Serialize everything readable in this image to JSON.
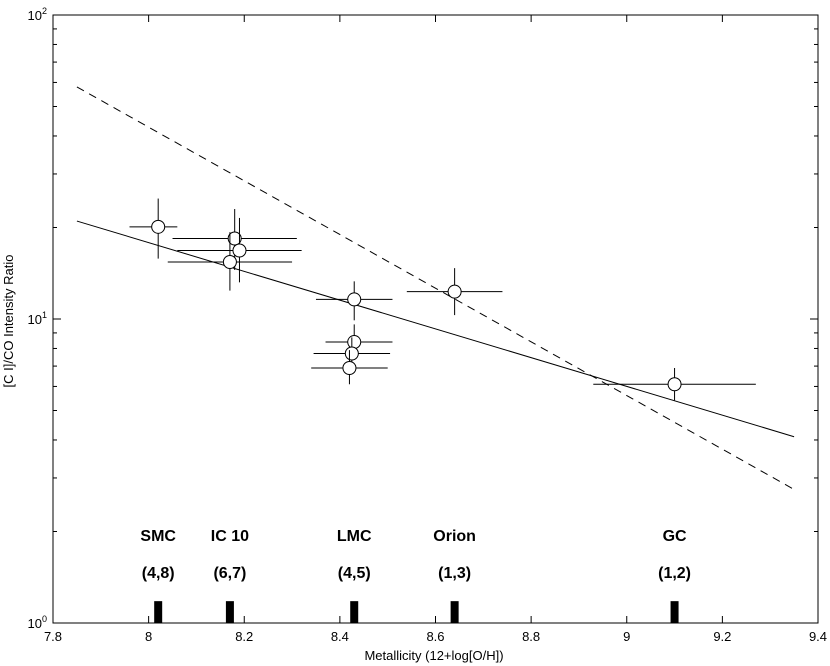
{
  "chart_data": {
    "type": "scatter",
    "xlabel": "Metallicity (12+log[O/H])",
    "ylabel": "[C I]/CO Intensity Ratio",
    "xlim": [
      7.8,
      9.4
    ],
    "ylim": [
      1,
      100
    ],
    "yscale": "log",
    "grid": false,
    "x_ticks": [
      7.8,
      8,
      8.2,
      8.4,
      8.6,
      8.8,
      9,
      9.2,
      9.4
    ],
    "x_tick_labels": [
      "7.8",
      "8",
      "8.2",
      "8.4",
      "8.6",
      "8.8",
      "9",
      "9.2",
      "9.4"
    ],
    "y_major_ticks": [
      {
        "value": 1,
        "base": "10",
        "exp": "0"
      },
      {
        "value": 10,
        "base": "10",
        "exp": "1"
      },
      {
        "value": 100,
        "base": "10",
        "exp": "2"
      }
    ],
    "y_minor_ticks": [
      2,
      3,
      4,
      5,
      6,
      7,
      8,
      9,
      20,
      30,
      40,
      50,
      60,
      70,
      80,
      90
    ],
    "points": [
      {
        "x": 8.02,
        "y": 20.1,
        "xerr": [
          7.96,
          8.06
        ],
        "yerr": [
          15.8,
          24.9
        ]
      },
      {
        "x": 8.18,
        "y": 18.4,
        "xerr": [
          8.05,
          8.31
        ],
        "yerr": [
          14.5,
          23.0
        ]
      },
      {
        "x": 8.19,
        "y": 16.8,
        "xerr": [
          8.06,
          8.32
        ],
        "yerr": [
          13.2,
          21.5
        ]
      },
      {
        "x": 8.17,
        "y": 15.4,
        "xerr": [
          8.04,
          8.3
        ],
        "yerr": [
          12.4,
          19.3
        ]
      },
      {
        "x": 8.43,
        "y": 11.6,
        "xerr": [
          8.35,
          8.51
        ],
        "yerr": [
          9.9,
          13.3
        ]
      },
      {
        "x": 8.43,
        "y": 8.4,
        "xerr": [
          8.37,
          8.51
        ],
        "yerr": [
          7.4,
          9.6
        ]
      },
      {
        "x": 8.425,
        "y": 7.7,
        "xerr": [
          8.345,
          8.505
        ],
        "yerr": [
          6.8,
          8.7
        ]
      },
      {
        "x": 8.42,
        "y": 6.9,
        "xerr": [
          8.34,
          8.5
        ],
        "yerr": [
          6.1,
          7.9
        ]
      },
      {
        "x": 8.64,
        "y": 12.3,
        "xerr": [
          8.54,
          8.74
        ],
        "yerr": [
          10.3,
          14.7
        ]
      },
      {
        "x": 9.1,
        "y": 6.1,
        "xerr": [
          8.93,
          9.27
        ],
        "yerr": [
          5.4,
          6.9
        ]
      }
    ],
    "fit_lines": [
      {
        "style": "solid",
        "x": [
          7.85,
          9.35
        ],
        "y": [
          21.0,
          4.1
        ]
      },
      {
        "style": "dashed",
        "x": [
          7.85,
          9.35
        ],
        "y": [
          58.0,
          2.75
        ]
      }
    ],
    "regions": [
      {
        "name": "SMC",
        "count": "(4,8)",
        "x": 8.02
      },
      {
        "name": "IC 10",
        "count": "(6,7)",
        "x": 8.17
      },
      {
        "name": "LMC",
        "count": "(4,5)",
        "x": 8.43
      },
      {
        "name": "Orion",
        "count": "(1,3)",
        "x": 8.64
      },
      {
        "name": "GC",
        "count": "(1,2)",
        "x": 9.1
      }
    ],
    "region_marker": {
      "y_low": 1,
      "y_high": 1.18
    },
    "region_name_y": 1.95,
    "region_count_y": 1.47
  }
}
